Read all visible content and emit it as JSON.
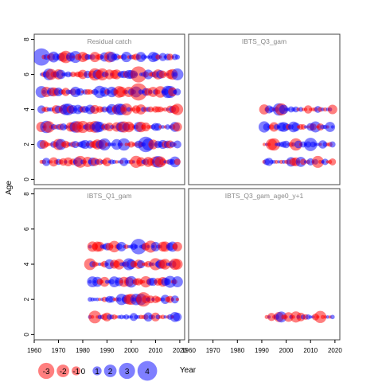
{
  "chart_data": {
    "type": "scatter",
    "subtype": "bubble-residuals",
    "xlabel": "Year",
    "ylabel": "Age",
    "xlim": [
      1960,
      2022
    ],
    "ylim": [
      -0.3,
      8.3
    ],
    "x_ticks": [
      1960,
      1970,
      1980,
      1990,
      2000,
      2010,
      2020
    ],
    "y_ticks": [
      0,
      2,
      4,
      6,
      8
    ],
    "colors": {
      "positive": "#0000ff",
      "negative": "#ff0000"
    },
    "legend": {
      "position": "bottom-left",
      "entries": [
        {
          "label": "-3",
          "value": -3
        },
        {
          "label": "-2",
          "value": -2
        },
        {
          "label": "-1",
          "value": -1
        },
        {
          "label": "0",
          "value": 0
        },
        {
          "label": "1",
          "value": 1
        },
        {
          "label": "2",
          "value": 2
        },
        {
          "label": "3",
          "value": 3
        },
        {
          "label": "4",
          "value": 4
        }
      ]
    },
    "panels": [
      {
        "title": "Residual catch",
        "ages": [
          1,
          2,
          3,
          4,
          5,
          6,
          7
        ],
        "year_start": 1963,
        "year_end": 2019,
        "seed": 11,
        "highlights": [
          {
            "age": 7,
            "year": 1963,
            "value": 2.6
          },
          {
            "age": 6,
            "year": 2003,
            "value": -2.4
          },
          {
            "age": 2,
            "year": 2006,
            "value": 2.3
          },
          {
            "age": 5,
            "year": 2003,
            "value": -2.6
          }
        ]
      },
      {
        "title": "IBTS_Q3_gam",
        "ages": [
          1,
          2,
          3,
          4
        ],
        "year_start": 1991,
        "year_end": 2019,
        "seed": 23,
        "highlights": [
          {
            "age": 2,
            "year": 2010,
            "value": 1.9
          },
          {
            "age": 4,
            "year": 1998,
            "value": -1.7
          }
        ]
      },
      {
        "title": "IBTS_Q1_gam",
        "ages": [
          1,
          2,
          3,
          4,
          5
        ],
        "year_start": 1983,
        "year_end": 2019,
        "seed": 37,
        "highlights": [
          {
            "age": 5,
            "year": 2003,
            "value": 2.3
          },
          {
            "age": 2,
            "year": 2005,
            "value": -2.1
          },
          {
            "age": 1,
            "year": 1985,
            "value": -1.8
          }
        ]
      },
      {
        "title": "IBTS_Q3_gam_age0_y+1",
        "ages": [
          1
        ],
        "year_start": 1992,
        "year_end": 2019,
        "seed": 53,
        "highlights": [
          {
            "age": 1,
            "year": 1998,
            "value": 1.5
          },
          {
            "age": 1,
            "year": 2014,
            "value": -1.7
          }
        ]
      }
    ]
  }
}
